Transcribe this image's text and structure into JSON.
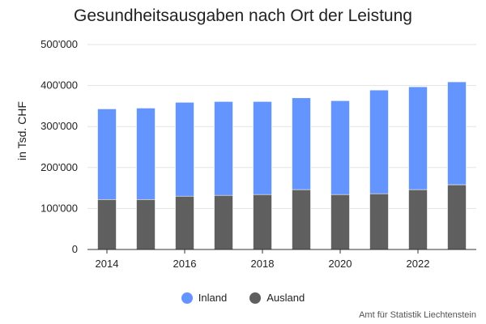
{
  "chart_data": {
    "type": "bar",
    "stacked": true,
    "title": "Gesundheitsausgaben nach Ort der Leistung",
    "ylabel": "in Tsd. CHF",
    "xlabel": "",
    "ylim": [
      0,
      500000
    ],
    "yticks": [
      "0",
      "100'000",
      "200'000",
      "300'000",
      "400'000",
      "500'000"
    ],
    "xticks": [
      "2014",
      "2016",
      "2018",
      "2020",
      "2022"
    ],
    "categories": [
      "2014",
      "2015",
      "2016",
      "2017",
      "2018",
      "2019",
      "2020",
      "2021",
      "2022",
      "2023"
    ],
    "series": [
      {
        "name": "Ausland",
        "color": "#5f5f5f",
        "values": [
          122000,
          122000,
          130000,
          132000,
          134000,
          146000,
          134000,
          136000,
          146000,
          158000
        ]
      },
      {
        "name": "Inland",
        "color": "#6495ff",
        "values": [
          221000,
          223000,
          229000,
          229000,
          227000,
          224000,
          229000,
          253000,
          251000,
          251000
        ]
      }
    ],
    "legend_position": "bottom",
    "grid": true
  },
  "legend": [
    {
      "label": "Inland",
      "color": "#6495ff"
    },
    {
      "label": "Ausland",
      "color": "#5f5f5f"
    }
  ],
  "source": "Amt für Statistik Liechtenstein"
}
